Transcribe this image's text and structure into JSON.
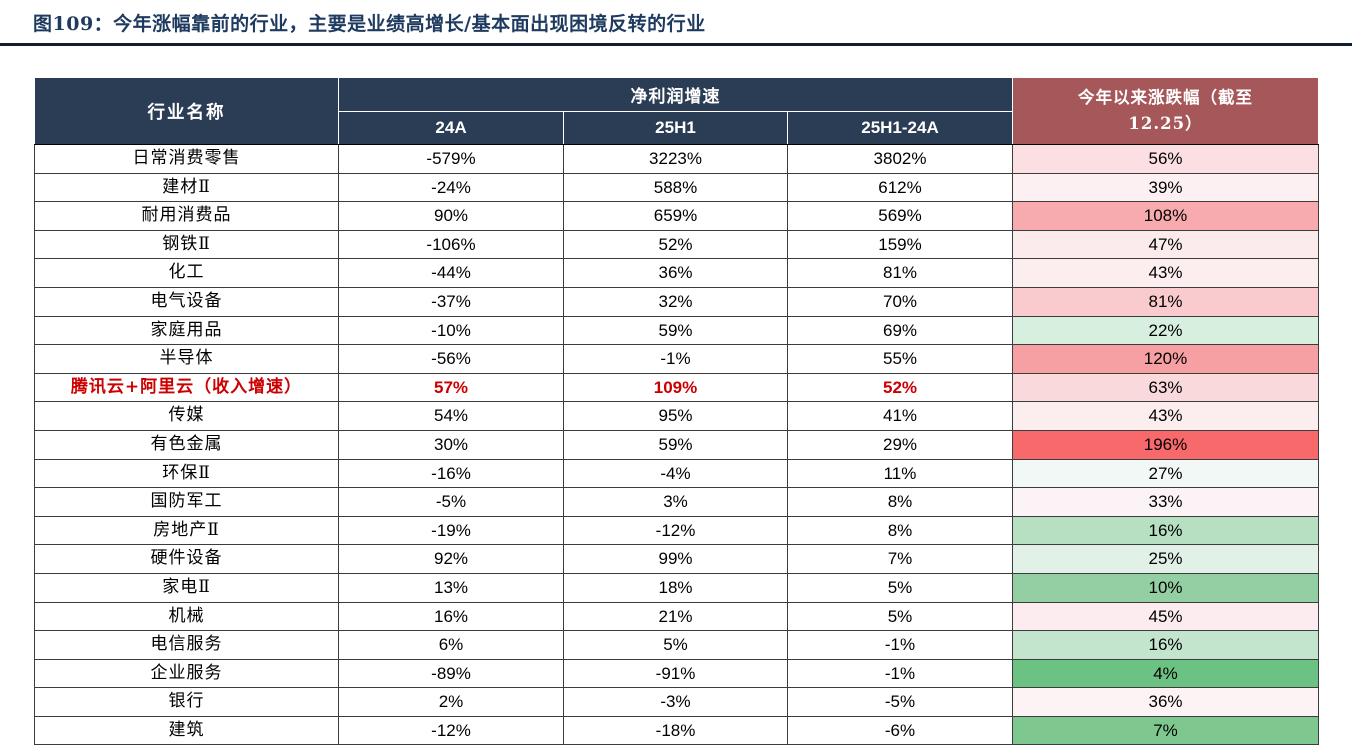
{
  "figure": {
    "title": "图109：今年涨幅靠前的行业，主要是业绩高增长/基本面出现困境反转的行业"
  },
  "colors": {
    "title": "#1e3a5f",
    "rule": "#121d30",
    "header_bg": "#2b3c55",
    "header_text": "#ffffff",
    "change_header_bg": "#a65759",
    "highlight_text": "#cc0000"
  },
  "table": {
    "header": {
      "industry": "行业名称",
      "profit_group": "净利润增速",
      "subcolumns": [
        "24A",
        "25H1",
        "25H1-24A"
      ],
      "change": "今年以来涨跌幅（截至\n12.25）"
    },
    "rows": [
      {
        "name": "日常消费零售",
        "a24": "-579%",
        "h25": "3223%",
        "diff": "3802%",
        "change": "56%",
        "change_bg": "#fbdfe2",
        "highlight": false
      },
      {
        "name": "建材Ⅱ",
        "a24": "-24%",
        "h25": "588%",
        "diff": "612%",
        "change": "39%",
        "change_bg": "#fdf0f3",
        "highlight": false
      },
      {
        "name": "耐用消费品",
        "a24": "90%",
        "h25": "659%",
        "diff": "569%",
        "change": "108%",
        "change_bg": "#f8abae",
        "highlight": false
      },
      {
        "name": "钢铁Ⅱ",
        "a24": "-106%",
        "h25": "52%",
        "diff": "159%",
        "change": "47%",
        "change_bg": "#fcebed",
        "highlight": false
      },
      {
        "name": "化工",
        "a24": "-44%",
        "h25": "36%",
        "diff": "81%",
        "change": "43%",
        "change_bg": "#fcedef",
        "highlight": false
      },
      {
        "name": "电气设备",
        "a24": "-37%",
        "h25": "32%",
        "diff": "70%",
        "change": "81%",
        "change_bg": "#f9cbce",
        "highlight": false
      },
      {
        "name": "家庭用品",
        "a24": "-10%",
        "h25": "59%",
        "diff": "69%",
        "change": "22%",
        "change_bg": "#d7efdf",
        "highlight": false
      },
      {
        "name": "半导体",
        "a24": "-56%",
        "h25": "-1%",
        "diff": "55%",
        "change": "120%",
        "change_bg": "#f7a0a4",
        "highlight": false
      },
      {
        "name": "腾讯云+阿里云（收入增速）",
        "a24": "57%",
        "h25": "109%",
        "diff": "52%",
        "change": "63%",
        "change_bg": "#fad9dc",
        "highlight": true
      },
      {
        "name": "传媒",
        "a24": "54%",
        "h25": "95%",
        "diff": "41%",
        "change": "43%",
        "change_bg": "#fcedef",
        "highlight": false
      },
      {
        "name": "有色金属",
        "a24": "30%",
        "h25": "59%",
        "diff": "29%",
        "change": "196%",
        "change_bg": "#f8696b",
        "highlight": false
      },
      {
        "name": "环保Ⅱ",
        "a24": "-16%",
        "h25": "-4%",
        "diff": "11%",
        "change": "27%",
        "change_bg": "#f1f8f5",
        "highlight": false
      },
      {
        "name": "国防军工",
        "a24": "-5%",
        "h25": "3%",
        "diff": "8%",
        "change": "33%",
        "change_bg": "#fcf3f7",
        "highlight": false
      },
      {
        "name": "房地产Ⅱ",
        "a24": "-19%",
        "h25": "-12%",
        "diff": "8%",
        "change": "16%",
        "change_bg": "#b7dfc2",
        "highlight": false
      },
      {
        "name": "硬件设备",
        "a24": "92%",
        "h25": "99%",
        "diff": "7%",
        "change": "25%",
        "change_bg": "#e2f1e7",
        "highlight": false
      },
      {
        "name": "家电Ⅱ",
        "a24": "13%",
        "h25": "18%",
        "diff": "5%",
        "change": "10%",
        "change_bg": "#93cfa3",
        "highlight": false
      },
      {
        "name": "机械",
        "a24": "16%",
        "h25": "21%",
        "diff": "5%",
        "change": "45%",
        "change_bg": "#fdecef",
        "highlight": false
      },
      {
        "name": "电信服务",
        "a24": "6%",
        "h25": "5%",
        "diff": "-1%",
        "change": "16%",
        "change_bg": "#c3e5cd",
        "highlight": false
      },
      {
        "name": "企业服务",
        "a24": "-89%",
        "h25": "-91%",
        "diff": "-1%",
        "change": "4%",
        "change_bg": "#6cc283",
        "highlight": false
      },
      {
        "name": "银行",
        "a24": "2%",
        "h25": "-3%",
        "diff": "-5%",
        "change": "36%",
        "change_bg": "#fdf3f5",
        "highlight": false
      },
      {
        "name": "建筑",
        "a24": "-12%",
        "h25": "-18%",
        "diff": "-6%",
        "change": "7%",
        "change_bg": "#7ec88f",
        "highlight": false
      }
    ]
  }
}
